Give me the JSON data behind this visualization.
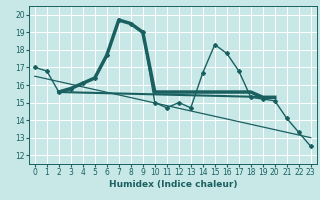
{
  "title": "",
  "xlabel": "Humidex (Indice chaleur)",
  "xlim": [
    -0.5,
    23.5
  ],
  "ylim": [
    11.5,
    20.5
  ],
  "yticks": [
    12,
    13,
    14,
    15,
    16,
    17,
    18,
    19,
    20
  ],
  "xticks": [
    0,
    1,
    2,
    3,
    4,
    5,
    6,
    7,
    8,
    9,
    10,
    11,
    12,
    13,
    14,
    15,
    16,
    17,
    18,
    19,
    20,
    21,
    22,
    23
  ],
  "bg_color": "#c8e8e8",
  "grid_color": "#ffffff",
  "line_color": "#1a6060",
  "series": [
    {
      "x": [
        0,
        1,
        2,
        3,
        4,
        5,
        6,
        7,
        8,
        9,
        10,
        11,
        12,
        13,
        14,
        15,
        16,
        17,
        18,
        19,
        20,
        21,
        22,
        23
      ],
      "y": [
        17.0,
        16.8,
        15.6,
        15.8,
        16.1,
        16.4,
        17.7,
        19.7,
        19.5,
        19.0,
        15.0,
        14.7,
        15.0,
        14.7,
        16.7,
        18.3,
        17.8,
        16.8,
        15.3,
        15.2,
        15.1,
        14.1,
        13.3,
        12.5
      ],
      "marker": "D",
      "markersize": 2.0,
      "linewidth": 1.0,
      "linestyle": "-"
    },
    {
      "x": [
        2,
        3,
        4,
        5,
        6,
        7,
        8,
        9,
        10,
        11,
        12,
        13,
        14,
        15,
        16,
        17,
        18,
        19,
        20
      ],
      "y": [
        15.6,
        15.8,
        16.1,
        16.4,
        17.7,
        19.7,
        19.5,
        19.0,
        15.6,
        15.6,
        15.6,
        15.6,
        15.6,
        15.6,
        15.6,
        15.6,
        15.6,
        15.3,
        15.3
      ],
      "marker": "",
      "markersize": 0,
      "linewidth": 2.5,
      "linestyle": "-"
    },
    {
      "x": [
        2,
        20
      ],
      "y": [
        15.6,
        15.3
      ],
      "marker": "",
      "markersize": 0,
      "linewidth": 1.5,
      "linestyle": "-"
    },
    {
      "x": [
        0,
        23
      ],
      "y": [
        16.5,
        13.0
      ],
      "marker": "",
      "markersize": 0,
      "linewidth": 0.9,
      "linestyle": "-"
    }
  ]
}
